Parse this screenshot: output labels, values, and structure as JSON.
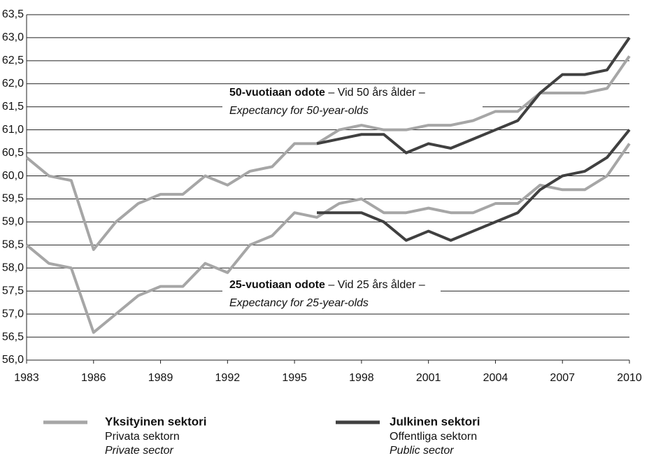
{
  "chart_data": {
    "type": "line",
    "x": [
      1983,
      1984,
      1985,
      1986,
      1987,
      1988,
      1989,
      1990,
      1991,
      1992,
      1993,
      1994,
      1995,
      1996,
      1997,
      1998,
      1999,
      2000,
      2001,
      2002,
      2003,
      2004,
      2005,
      2006,
      2007,
      2008,
      2009,
      2010
    ],
    "xlim": [
      1983,
      2010
    ],
    "xticks": [
      1983,
      1986,
      1989,
      1992,
      1995,
      1998,
      2001,
      2004,
      2007,
      2010
    ],
    "ylim": [
      56.0,
      63.5
    ],
    "yticks": [
      {
        "value": 56.0,
        "label": "56,0"
      },
      {
        "value": 56.5,
        "label": "56,5"
      },
      {
        "value": 57.0,
        "label": "57,0"
      },
      {
        "value": 57.5,
        "label": "57,5"
      },
      {
        "value": 58.0,
        "label": "58,0"
      },
      {
        "value": 58.5,
        "label": "58,5"
      },
      {
        "value": 59.0,
        "label": "59,0"
      },
      {
        "value": 59.5,
        "label": "59,5"
      },
      {
        "value": 60.0,
        "label": "60,0"
      },
      {
        "value": 60.5,
        "label": "60,5"
      },
      {
        "value": 61.0,
        "label": "61,0"
      },
      {
        "value": 61.5,
        "label": "61,5"
      },
      {
        "value": 62.0,
        "label": "62,0"
      },
      {
        "value": 62.5,
        "label": "62,5"
      },
      {
        "value": 63.0,
        "label": "63,0"
      },
      {
        "value": 63.5,
        "label": "63,5"
      }
    ],
    "grid": true,
    "series": [
      {
        "name": "Yksityinen sektori",
        "name_sv": "Privata sektorn",
        "name_en": "Private sector",
        "color": "#a6a6a6",
        "values_50": [
          60.4,
          60.0,
          59.9,
          58.4,
          59.0,
          59.4,
          59.6,
          59.6,
          60.0,
          59.8,
          60.1,
          60.2,
          60.7,
          60.7,
          61.0,
          61.1,
          61.0,
          61.0,
          61.1,
          61.1,
          61.2,
          61.4,
          61.4,
          61.8,
          61.8,
          61.8,
          61.9,
          62.6
        ],
        "values_25": [
          58.5,
          58.1,
          58.0,
          56.6,
          57.0,
          57.4,
          57.6,
          57.6,
          58.1,
          57.9,
          58.5,
          58.7,
          59.2,
          59.1,
          59.4,
          59.5,
          59.2,
          59.2,
          59.3,
          59.2,
          59.2,
          59.4,
          59.4,
          59.8,
          59.7,
          59.7,
          60.0,
          60.7
        ]
      },
      {
        "name": "Julkinen sektori",
        "name_sv": "Offentliga sektorn",
        "name_en": "Public sector",
        "color": "#404040",
        "values_50": [
          null,
          null,
          null,
          null,
          null,
          null,
          null,
          null,
          null,
          null,
          null,
          null,
          null,
          60.7,
          60.8,
          60.9,
          60.9,
          60.5,
          60.7,
          60.6,
          60.8,
          61.0,
          61.2,
          61.8,
          62.2,
          62.2,
          62.3,
          63.0
        ],
        "values_25": [
          null,
          null,
          null,
          null,
          null,
          null,
          null,
          null,
          null,
          null,
          null,
          null,
          null,
          59.2,
          59.2,
          59.2,
          59.0,
          58.6,
          58.8,
          58.6,
          58.8,
          59.0,
          59.2,
          59.7,
          60.0,
          60.1,
          60.4,
          61.0
        ]
      }
    ],
    "annotations": [
      {
        "bold": "50-vuotiaan odote",
        "text": " – Vid 50 års ålder –",
        "italic": "Expectancy for 50-year-olds"
      },
      {
        "bold": "25-vuotiaan odote",
        "text": " – Vid 25 års ålder –",
        "italic": "Expectancy for 25-year-olds"
      }
    ]
  }
}
